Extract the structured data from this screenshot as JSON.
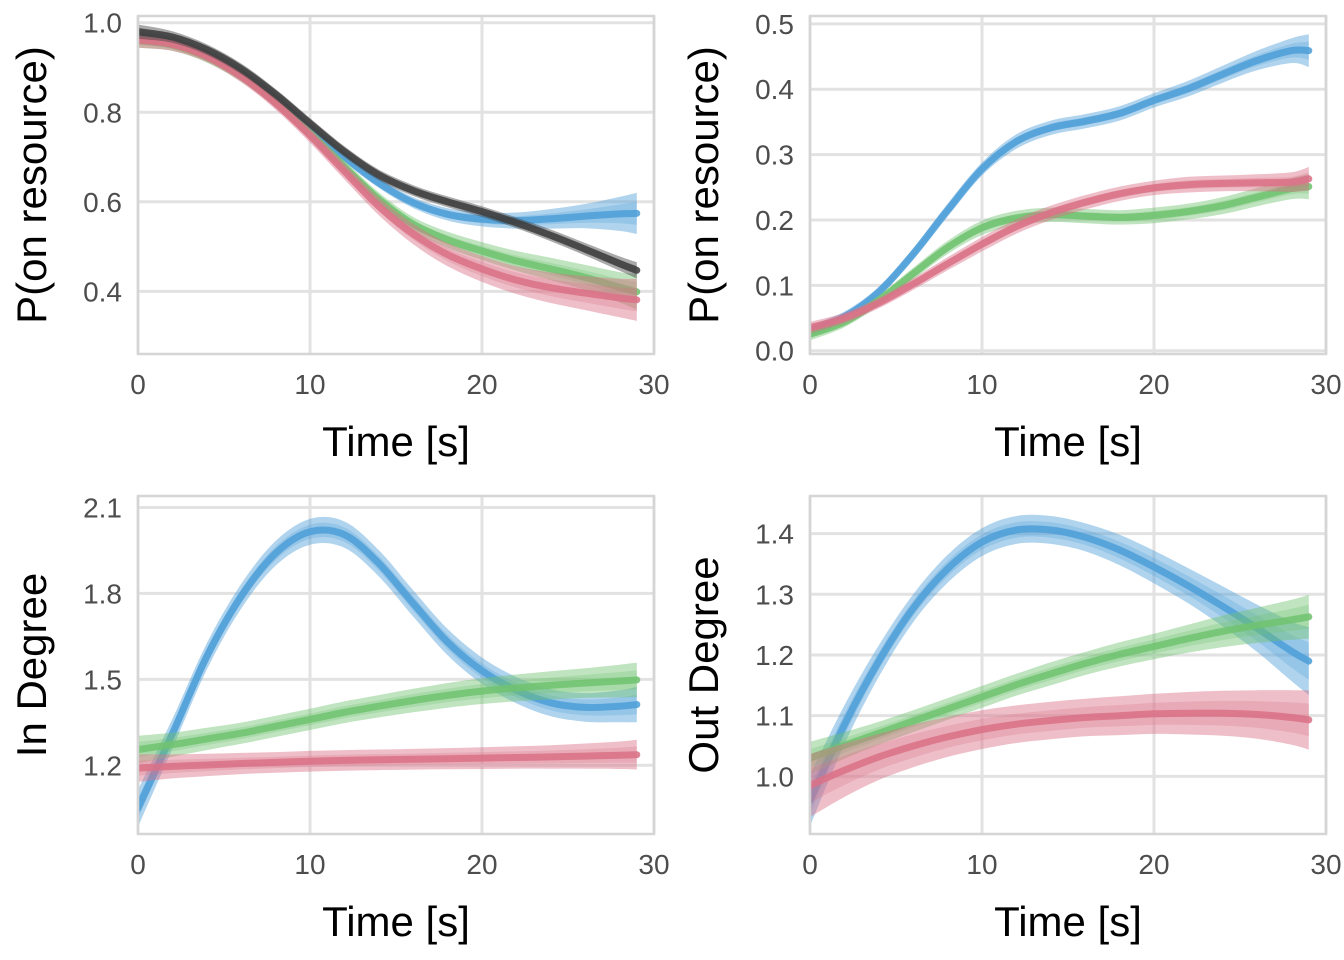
{
  "figure": {
    "background": "#ffffff",
    "grid_color": "#e2e2e2",
    "border_color": "#d5d5d5",
    "tick_label_color": "#4d4d4d",
    "axis_title_color": "#000000",
    "series_colors": {
      "blue": "#4f9fd9",
      "green": "#71c371",
      "red": "#db7287",
      "black": "#404040"
    }
  },
  "chart_data": [
    {
      "id": "top-left",
      "type": "line",
      "title": "",
      "xlabel": "Time [s]",
      "ylabel": "P(on resource)",
      "xlim": [
        0,
        30
      ],
      "ylim": [
        0.26,
        1.015
      ],
      "xtick_values": [
        0,
        10,
        20,
        30
      ],
      "xtick_labels": [
        "0",
        "10",
        "20",
        "30"
      ],
      "ytick_values": [
        0.4,
        0.6,
        0.8,
        1.0
      ],
      "ytick_labels": [
        "0.4",
        "0.6",
        "0.8",
        "1.0"
      ],
      "grid": true,
      "legend": "none",
      "x": [
        0,
        2,
        4,
        6,
        8,
        10,
        12,
        14,
        16,
        18,
        20,
        22,
        24,
        26,
        28,
        29
      ],
      "series": [
        {
          "name": "series-blue",
          "color": "#4f9fd9",
          "values": [
            0.97,
            0.958,
            0.93,
            0.888,
            0.83,
            0.764,
            0.7,
            0.642,
            0.598,
            0.572,
            0.561,
            0.558,
            0.562,
            0.568,
            0.573,
            0.574
          ],
          "band_halfwidth": [
            0.014,
            0.011,
            0.01,
            0.01,
            0.01,
            0.01,
            0.011,
            0.011,
            0.012,
            0.014,
            0.016,
            0.018,
            0.022,
            0.027,
            0.038,
            0.046
          ]
        },
        {
          "name": "series-green",
          "color": "#71c371",
          "values": [
            0.96,
            0.95,
            0.923,
            0.88,
            0.822,
            0.752,
            0.678,
            0.606,
            0.55,
            0.515,
            0.49,
            0.468,
            0.45,
            0.431,
            0.409,
            0.399
          ],
          "band_halfwidth": [
            0.016,
            0.013,
            0.012,
            0.012,
            0.012,
            0.013,
            0.014,
            0.015,
            0.016,
            0.018,
            0.02,
            0.022,
            0.025,
            0.028,
            0.034,
            0.04
          ]
        },
        {
          "name": "series-red",
          "color": "#db7287",
          "values": [
            0.962,
            0.952,
            0.925,
            0.88,
            0.82,
            0.748,
            0.668,
            0.59,
            0.528,
            0.482,
            0.45,
            0.425,
            0.408,
            0.396,
            0.385,
            0.381
          ],
          "band_halfwidth": [
            0.018,
            0.015,
            0.013,
            0.013,
            0.014,
            0.016,
            0.018,
            0.02,
            0.023,
            0.026,
            0.029,
            0.031,
            0.034,
            0.038,
            0.043,
            0.047
          ]
        },
        {
          "name": "series-black",
          "color": "#404040",
          "values": [
            0.98,
            0.968,
            0.94,
            0.897,
            0.84,
            0.775,
            0.712,
            0.66,
            0.625,
            0.6,
            0.578,
            0.553,
            0.525,
            0.494,
            0.462,
            0.447
          ],
          "band_halfwidth": [
            0.016,
            0.013,
            0.012,
            0.012,
            0.012,
            0.012,
            0.012,
            0.012,
            0.012,
            0.012,
            0.012,
            0.012,
            0.013,
            0.014,
            0.016,
            0.018
          ]
        }
      ]
    },
    {
      "id": "top-right",
      "type": "line",
      "title": "",
      "xlabel": "Time [s]",
      "ylabel": "P(on resource)",
      "xlim": [
        0,
        30
      ],
      "ylim": [
        -0.005,
        0.512
      ],
      "xtick_values": [
        0,
        10,
        20,
        30
      ],
      "xtick_labels": [
        "0",
        "10",
        "20",
        "30"
      ],
      "ytick_values": [
        0.0,
        0.1,
        0.2,
        0.3,
        0.4,
        0.5
      ],
      "ytick_labels": [
        "0.0",
        "0.1",
        "0.2",
        "0.3",
        "0.4",
        "0.5"
      ],
      "grid": true,
      "legend": "none",
      "x": [
        0,
        2,
        4,
        6,
        8,
        10,
        12,
        14,
        16,
        18,
        20,
        22,
        24,
        26,
        28,
        29
      ],
      "series": [
        {
          "name": "series-blue",
          "color": "#4f9fd9",
          "values": [
            0.03,
            0.052,
            0.09,
            0.148,
            0.215,
            0.278,
            0.32,
            0.341,
            0.351,
            0.363,
            0.383,
            0.401,
            0.423,
            0.444,
            0.459,
            0.459
          ],
          "band_halfwidth": [
            0.009,
            0.008,
            0.008,
            0.009,
            0.01,
            0.01,
            0.011,
            0.011,
            0.011,
            0.011,
            0.011,
            0.012,
            0.013,
            0.015,
            0.019,
            0.025
          ]
        },
        {
          "name": "series-green",
          "color": "#71c371",
          "values": [
            0.025,
            0.044,
            0.077,
            0.118,
            0.158,
            0.188,
            0.203,
            0.208,
            0.206,
            0.204,
            0.207,
            0.213,
            0.222,
            0.235,
            0.248,
            0.251
          ],
          "band_halfwidth": [
            0.009,
            0.008,
            0.008,
            0.009,
            0.01,
            0.011,
            0.011,
            0.011,
            0.011,
            0.011,
            0.012,
            0.012,
            0.013,
            0.014,
            0.016,
            0.019
          ]
        },
        {
          "name": "series-red",
          "color": "#db7287",
          "values": [
            0.035,
            0.05,
            0.073,
            0.102,
            0.133,
            0.163,
            0.19,
            0.211,
            0.227,
            0.24,
            0.249,
            0.254,
            0.256,
            0.257,
            0.258,
            0.263
          ],
          "band_halfwidth": [
            0.009,
            0.008,
            0.008,
            0.009,
            0.01,
            0.011,
            0.011,
            0.011,
            0.011,
            0.011,
            0.011,
            0.012,
            0.012,
            0.013,
            0.015,
            0.018
          ]
        }
      ]
    },
    {
      "id": "bottom-left",
      "type": "line",
      "title": "",
      "xlabel": "Time [s]",
      "ylabel": "In Degree",
      "xlim": [
        0,
        30
      ],
      "ylim": [
        0.96,
        2.14
      ],
      "xtick_values": [
        0,
        10,
        20,
        30
      ],
      "xtick_labels": [
        "0",
        "10",
        "20",
        "30"
      ],
      "ytick_values": [
        1.2,
        1.5,
        1.8,
        2.1
      ],
      "ytick_labels": [
        "1.2",
        "1.5",
        "1.8",
        "2.1"
      ],
      "grid": true,
      "legend": "none",
      "x": [
        0,
        2,
        4,
        6,
        8,
        10,
        12,
        14,
        16,
        18,
        20,
        22,
        24,
        26,
        28,
        29
      ],
      "series": [
        {
          "name": "series-blue",
          "color": "#4f9fd9",
          "values": [
            1.05,
            1.31,
            1.58,
            1.79,
            1.94,
            2.015,
            2.005,
            1.905,
            1.765,
            1.63,
            1.53,
            1.462,
            1.418,
            1.402,
            1.406,
            1.412
          ],
          "band_halfwidth": [
            0.065,
            0.052,
            0.046,
            0.043,
            0.043,
            0.045,
            0.046,
            0.046,
            0.046,
            0.046,
            0.046,
            0.046,
            0.047,
            0.05,
            0.056,
            0.062
          ]
        },
        {
          "name": "series-green",
          "color": "#71c371",
          "values": [
            1.255,
            1.272,
            1.292,
            1.312,
            1.336,
            1.36,
            1.385,
            1.406,
            1.426,
            1.444,
            1.459,
            1.47,
            1.479,
            1.487,
            1.494,
            1.498
          ],
          "band_halfwidth": [
            0.048,
            0.042,
            0.039,
            0.037,
            0.037,
            0.037,
            0.038,
            0.039,
            0.041,
            0.043,
            0.045,
            0.047,
            0.049,
            0.052,
            0.057,
            0.06
          ]
        },
        {
          "name": "series-red",
          "color": "#db7287",
          "values": [
            1.19,
            1.196,
            1.201,
            1.206,
            1.21,
            1.214,
            1.217,
            1.219,
            1.221,
            1.223,
            1.225,
            1.227,
            1.229,
            1.232,
            1.235,
            1.237
          ],
          "band_halfwidth": [
            0.048,
            0.042,
            0.039,
            0.037,
            0.036,
            0.036,
            0.036,
            0.036,
            0.036,
            0.037,
            0.038,
            0.039,
            0.041,
            0.044,
            0.048,
            0.052
          ]
        }
      ]
    },
    {
      "id": "bottom-right",
      "type": "line",
      "title": "",
      "xlabel": "Time [s]",
      "ylabel": "Out Degree",
      "xlim": [
        0,
        30
      ],
      "ylim": [
        0.905,
        1.462
      ],
      "xtick_values": [
        0,
        10,
        20,
        30
      ],
      "xtick_labels": [
        "0",
        "10",
        "20",
        "30"
      ],
      "ytick_values": [
        1.0,
        1.1,
        1.2,
        1.3,
        1.4
      ],
      "ytick_labels": [
        "1.0",
        "1.1",
        "1.2",
        "1.3",
        "1.4"
      ],
      "grid": true,
      "legend": "none",
      "x": [
        0,
        2,
        4,
        6,
        8,
        10,
        12,
        14,
        16,
        18,
        20,
        22,
        24,
        26,
        28,
        29
      ],
      "series": [
        {
          "name": "series-blue",
          "color": "#4f9fd9",
          "values": [
            0.96,
            1.085,
            1.19,
            1.277,
            1.342,
            1.386,
            1.406,
            1.406,
            1.394,
            1.373,
            1.345,
            1.314,
            1.28,
            1.244,
            1.206,
            1.19
          ],
          "band_halfwidth": [
            0.042,
            0.032,
            0.026,
            0.023,
            0.023,
            0.023,
            0.023,
            0.023,
            0.023,
            0.025,
            0.027,
            0.029,
            0.033,
            0.039,
            0.049,
            0.056
          ]
        },
        {
          "name": "series-green",
          "color": "#71c371",
          "values": [
            1.03,
            1.051,
            1.071,
            1.091,
            1.111,
            1.131,
            1.151,
            1.169,
            1.186,
            1.201,
            1.214,
            1.227,
            1.239,
            1.249,
            1.258,
            1.263
          ],
          "band_halfwidth": [
            0.027,
            0.022,
            0.019,
            0.018,
            0.018,
            0.018,
            0.018,
            0.019,
            0.019,
            0.02,
            0.021,
            0.023,
            0.026,
            0.029,
            0.033,
            0.036
          ]
        },
        {
          "name": "series-red",
          "color": "#db7287",
          "values": [
            0.985,
            1.01,
            1.032,
            1.05,
            1.065,
            1.077,
            1.086,
            1.092,
            1.097,
            1.1,
            1.103,
            1.104,
            1.104,
            1.102,
            1.097,
            1.093
          ],
          "band_halfwidth": [
            0.052,
            0.044,
            0.038,
            0.035,
            0.033,
            0.032,
            0.031,
            0.031,
            0.031,
            0.032,
            0.033,
            0.035,
            0.037,
            0.04,
            0.045,
            0.049
          ]
        }
      ]
    }
  ]
}
